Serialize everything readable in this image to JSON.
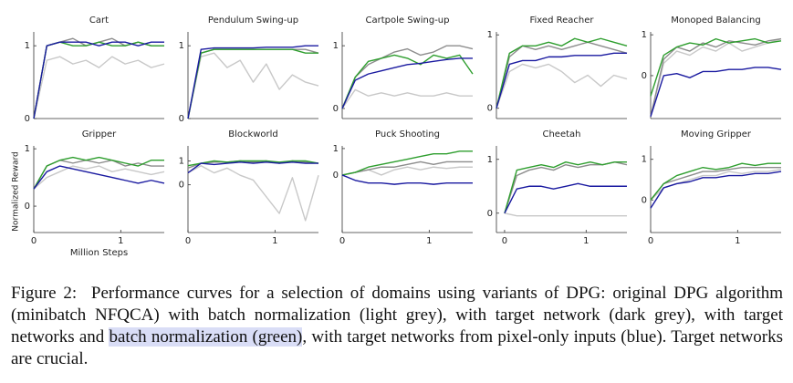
{
  "chart_data": [
    {
      "type": "line",
      "title": "Cart",
      "x": [
        0,
        0.15,
        0.3,
        0.45,
        0.6,
        0.75,
        0.9,
        1.05,
        1.2,
        1.35,
        1.5
      ],
      "xlim": [
        0,
        1.5
      ],
      "ylim": [
        0,
        1.19
      ],
      "yticks": [
        0,
        1
      ],
      "series": [
        {
          "color": "#c8c8c8",
          "values": [
            0,
            0.8,
            0.85,
            0.75,
            0.8,
            0.7,
            0.85,
            0.75,
            0.8,
            0.7,
            0.75
          ]
        },
        {
          "color": "#8c8c8c",
          "values": [
            0,
            1.0,
            1.05,
            1.1,
            1.0,
            1.05,
            1.1,
            1.0,
            1.05,
            1.0,
            1.0
          ]
        },
        {
          "color": "#2e9e2e",
          "values": [
            0,
            1.0,
            1.05,
            1.0,
            1.0,
            1.05,
            1.0,
            1.0,
            1.05,
            1.0,
            1.0
          ]
        },
        {
          "color": "#1a1aa0",
          "values": [
            0,
            1.0,
            1.05,
            1.05,
            1.05,
            1.0,
            1.05,
            1.05,
            1.0,
            1.05,
            1.05
          ]
        }
      ]
    },
    {
      "type": "line",
      "title": "Pendulum Swing-up",
      "x": [
        0,
        0.15,
        0.3,
        0.45,
        0.6,
        0.75,
        0.9,
        1.05,
        1.2,
        1.35,
        1.5
      ],
      "xlim": [
        0,
        1.5
      ],
      "ylim": [
        0,
        1.19
      ],
      "yticks": [
        0,
        1
      ],
      "series": [
        {
          "color": "#c8c8c8",
          "values": [
            0,
            0.85,
            0.9,
            0.7,
            0.8,
            0.5,
            0.75,
            0.4,
            0.6,
            0.5,
            0.45
          ]
        },
        {
          "color": "#8c8c8c",
          "values": [
            0,
            0.9,
            0.95,
            0.95,
            0.95,
            0.95,
            0.95,
            0.95,
            0.95,
            0.95,
            0.9
          ]
        },
        {
          "color": "#2e9e2e",
          "values": [
            0,
            0.9,
            0.95,
            0.95,
            0.95,
            0.95,
            0.95,
            0.95,
            0.95,
            0.9,
            0.9
          ]
        },
        {
          "color": "#1a1aa0",
          "values": [
            0,
            0.95,
            0.97,
            0.97,
            0.97,
            0.97,
            0.98,
            0.98,
            0.98,
            1.0,
            1.0
          ]
        }
      ]
    },
    {
      "type": "line",
      "title": "Cartpole Swing-up",
      "x": [
        0,
        0.15,
        0.3,
        0.45,
        0.6,
        0.75,
        0.9,
        1.05,
        1.2,
        1.35,
        1.5
      ],
      "xlim": [
        0,
        1.5
      ],
      "ylim": [
        -0.16,
        1.22
      ],
      "yticks": [
        0,
        1
      ],
      "series": [
        {
          "color": "#c8c8c8",
          "values": [
            0,
            0.3,
            0.2,
            0.25,
            0.2,
            0.25,
            0.2,
            0.2,
            0.25,
            0.2,
            0.2
          ]
        },
        {
          "color": "#8c8c8c",
          "values": [
            0,
            0.5,
            0.7,
            0.8,
            0.9,
            0.95,
            0.85,
            0.9,
            1.0,
            1.0,
            0.95
          ]
        },
        {
          "color": "#2e9e2e",
          "values": [
            0,
            0.5,
            0.75,
            0.8,
            0.85,
            0.8,
            0.7,
            0.85,
            0.8,
            0.85,
            0.55
          ]
        },
        {
          "color": "#1a1aa0",
          "values": [
            0,
            0.45,
            0.55,
            0.6,
            0.65,
            0.7,
            0.72,
            0.75,
            0.78,
            0.8,
            0.8
          ]
        }
      ]
    },
    {
      "type": "line",
      "title": "Fixed Reacher",
      "x": [
        0,
        0.15,
        0.3,
        0.45,
        0.6,
        0.75,
        0.9,
        1.05,
        1.2,
        1.35,
        1.5
      ],
      "xlim": [
        0,
        1.5
      ],
      "ylim": [
        -0.14,
        1.04
      ],
      "yticks": [
        0,
        1
      ],
      "series": [
        {
          "color": "#c8c8c8",
          "values": [
            0,
            0.5,
            0.6,
            0.55,
            0.6,
            0.5,
            0.35,
            0.45,
            0.3,
            0.45,
            0.4
          ]
        },
        {
          "color": "#8c8c8c",
          "values": [
            0,
            0.7,
            0.85,
            0.8,
            0.85,
            0.8,
            0.85,
            0.9,
            0.85,
            0.8,
            0.75
          ]
        },
        {
          "color": "#2e9e2e",
          "values": [
            0,
            0.75,
            0.85,
            0.85,
            0.9,
            0.85,
            0.95,
            0.9,
            0.95,
            0.9,
            0.85
          ]
        },
        {
          "color": "#1a1aa0",
          "values": [
            0,
            0.6,
            0.65,
            0.65,
            0.7,
            0.7,
            0.72,
            0.72,
            0.72,
            0.75,
            0.75
          ]
        }
      ]
    },
    {
      "type": "line",
      "title": "Monoped Balancing",
      "x": [
        0,
        0.15,
        0.3,
        0.45,
        0.6,
        0.75,
        0.9,
        1.05,
        1.2,
        1.35,
        1.5
      ],
      "xlim": [
        0,
        1.5
      ],
      "ylim": [
        -1.05,
        1.07
      ],
      "yticks": [
        0,
        1
      ],
      "series": [
        {
          "color": "#c8c8c8",
          "values": [
            -1,
            0.3,
            0.6,
            0.5,
            0.7,
            0.6,
            0.8,
            0.6,
            0.7,
            0.8,
            0.9
          ]
        },
        {
          "color": "#8c8c8c",
          "values": [
            -1,
            0.4,
            0.7,
            0.6,
            0.8,
            0.7,
            0.85,
            0.8,
            0.75,
            0.85,
            0.9
          ]
        },
        {
          "color": "#2e9e2e",
          "values": [
            -0.5,
            0.5,
            0.7,
            0.8,
            0.75,
            0.9,
            0.8,
            0.85,
            0.9,
            0.8,
            0.85
          ]
        },
        {
          "color": "#1a1aa0",
          "values": [
            -1,
            0,
            0.05,
            -0.05,
            0.1,
            0.1,
            0.15,
            0.15,
            0.2,
            0.2,
            0.15
          ]
        }
      ]
    },
    {
      "type": "line",
      "title": "Gripper",
      "xlabel": "Million Steps",
      "ylabel": "Normalized Reward",
      "x": [
        0,
        0.15,
        0.3,
        0.45,
        0.6,
        0.75,
        0.9,
        1.05,
        1.2,
        1.35,
        1.5
      ],
      "xlim": [
        0,
        1.5
      ],
      "xticks": [
        0,
        1
      ],
      "ylim": [
        -0.46,
        1.05
      ],
      "yticks": [
        0,
        1
      ],
      "series": [
        {
          "color": "#c8c8c8",
          "values": [
            0.3,
            0.5,
            0.6,
            0.7,
            0.65,
            0.7,
            0.6,
            0.65,
            0.6,
            0.55,
            0.6
          ]
        },
        {
          "color": "#8c8c8c",
          "values": [
            0.3,
            0.7,
            0.8,
            0.75,
            0.8,
            0.75,
            0.8,
            0.7,
            0.75,
            0.7,
            0.7
          ]
        },
        {
          "color": "#2e9e2e",
          "values": [
            0.3,
            0.7,
            0.8,
            0.85,
            0.8,
            0.85,
            0.8,
            0.75,
            0.7,
            0.8,
            0.8
          ]
        },
        {
          "color": "#1a1aa0",
          "values": [
            0.3,
            0.6,
            0.7,
            0.65,
            0.6,
            0.55,
            0.5,
            0.45,
            0.4,
            0.45,
            0.4
          ]
        }
      ]
    },
    {
      "type": "line",
      "title": "Blockworld",
      "x": [
        0,
        0.15,
        0.3,
        0.45,
        0.6,
        0.75,
        0.9,
        1.05,
        1.2,
        1.35,
        1.5
      ],
      "xlim": [
        0,
        1.5
      ],
      "xticks": [
        0,
        1
      ],
      "ylim": [
        -2.0,
        1.63
      ],
      "yticks": [
        0,
        1
      ],
      "series": [
        {
          "color": "#c8c8c8",
          "values": [
            0.5,
            0.8,
            0.5,
            0.7,
            0.4,
            0.2,
            -0.5,
            -1.2,
            0.3,
            -1.5,
            0.4
          ]
        },
        {
          "color": "#8c8c8c",
          "values": [
            0.7,
            0.9,
            0.95,
            0.95,
            1.0,
            0.95,
            1.0,
            0.9,
            1.0,
            0.95,
            0.9
          ]
        },
        {
          "color": "#2e9e2e",
          "values": [
            0.8,
            0.9,
            1.0,
            0.95,
            1.0,
            1.0,
            1.0,
            0.95,
            1.0,
            1.0,
            0.9
          ]
        },
        {
          "color": "#1a1aa0",
          "values": [
            0.5,
            0.9,
            0.85,
            0.9,
            0.95,
            0.9,
            0.95,
            0.9,
            0.95,
            0.9,
            0.9
          ]
        }
      ]
    },
    {
      "type": "line",
      "title": "Puck Shooting",
      "x": [
        0,
        0.15,
        0.3,
        0.45,
        0.6,
        0.75,
        0.9,
        1.05,
        1.2,
        1.35,
        1.5
      ],
      "xlim": [
        0,
        1.5
      ],
      "xticks": [
        0,
        1
      ],
      "ylim": [
        -2.17,
        1.1
      ],
      "yticks": [
        0,
        1
      ],
      "series": [
        {
          "color": "#c8c8c8",
          "values": [
            0,
            0.1,
            0.2,
            0.0,
            0.2,
            0.3,
            0.2,
            0.3,
            0.25,
            0.3,
            0.3
          ]
        },
        {
          "color": "#8c8c8c",
          "values": [
            0,
            0.1,
            0.2,
            0.3,
            0.3,
            0.4,
            0.5,
            0.4,
            0.5,
            0.5,
            0.5
          ]
        },
        {
          "color": "#2e9e2e",
          "values": [
            0,
            0.1,
            0.3,
            0.4,
            0.5,
            0.6,
            0.7,
            0.8,
            0.8,
            0.9,
            0.9
          ]
        },
        {
          "color": "#1a1aa0",
          "values": [
            0,
            -0.2,
            -0.3,
            -0.3,
            -0.35,
            -0.3,
            -0.3,
            -0.35,
            -0.3,
            -0.3,
            -0.3
          ]
        }
      ]
    },
    {
      "type": "line",
      "title": "Cheetah",
      "x": [
        0,
        0.15,
        0.3,
        0.45,
        0.6,
        0.75,
        0.9,
        1.05,
        1.2,
        1.35,
        1.5
      ],
      "xlim": [
        -0.1,
        1.5
      ],
      "xticks": [
        0,
        1
      ],
      "ylim": [
        -0.36,
        1.25
      ],
      "yticks": [
        0,
        1
      ],
      "series": [
        {
          "color": "#c8c8c8",
          "values": [
            0,
            -0.05,
            -0.05,
            -0.05,
            -0.05,
            -0.05,
            -0.05,
            -0.05,
            -0.05,
            -0.05,
            -0.05
          ]
        },
        {
          "color": "#8c8c8c",
          "values": [
            0,
            0.7,
            0.8,
            0.85,
            0.8,
            0.9,
            0.85,
            0.9,
            0.9,
            0.95,
            0.9
          ]
        },
        {
          "color": "#2e9e2e",
          "values": [
            0,
            0.8,
            0.85,
            0.9,
            0.85,
            0.95,
            0.9,
            0.95,
            0.9,
            0.95,
            0.95
          ]
        },
        {
          "color": "#1a1aa0",
          "values": [
            0,
            0.45,
            0.5,
            0.5,
            0.45,
            0.5,
            0.55,
            0.5,
            0.5,
            0.5,
            0.5
          ]
        }
      ]
    },
    {
      "type": "line",
      "title": "Moving Gripper",
      "x": [
        0,
        0.15,
        0.3,
        0.45,
        0.6,
        0.75,
        0.9,
        1.05,
        1.2,
        1.35,
        1.5
      ],
      "xlim": [
        0,
        1.5
      ],
      "xticks": [
        0,
        1
      ],
      "ylim": [
        -0.8,
        1.33
      ],
      "yticks": [
        0,
        1
      ],
      "series": [
        {
          "color": "#c8c8c8",
          "values": [
            0,
            0.3,
            0.4,
            0.5,
            0.6,
            0.6,
            0.7,
            0.65,
            0.7,
            0.7,
            0.75
          ]
        },
        {
          "color": "#8c8c8c",
          "values": [
            0,
            0.4,
            0.5,
            0.6,
            0.7,
            0.7,
            0.75,
            0.8,
            0.8,
            0.8,
            0.8
          ]
        },
        {
          "color": "#2e9e2e",
          "values": [
            0,
            0.4,
            0.6,
            0.7,
            0.8,
            0.75,
            0.8,
            0.9,
            0.85,
            0.9,
            0.9
          ]
        },
        {
          "color": "#1a1aa0",
          "values": [
            -0.2,
            0.3,
            0.4,
            0.45,
            0.55,
            0.55,
            0.6,
            0.6,
            0.65,
            0.65,
            0.7
          ]
        }
      ]
    }
  ],
  "caption": {
    "label": "Figure 2:",
    "text_before": "Performance curves for a selection of domains using variants of DPG: original DPG algorithm (minibatch NFQCA) with batch normalization (light grey), with target network (dark grey), with target networks and",
    "highlight": "batch normalization (green)",
    "text_after": ", with target networks from pixel-only inputs (blue). Target networks are crucial."
  }
}
